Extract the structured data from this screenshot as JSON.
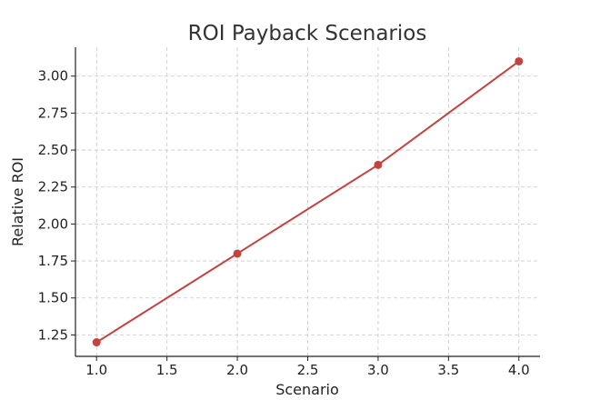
{
  "chart_data": {
    "type": "line",
    "title": "ROI Payback Scenarios",
    "xlabel": "Scenario",
    "ylabel": "Relative ROI",
    "x": [
      1.0,
      2.0,
      3.0,
      4.0
    ],
    "series": [
      {
        "values": [
          1.2,
          1.8,
          2.4,
          3.1
        ],
        "color": "#c44240"
      }
    ],
    "xlim": [
      0.85,
      4.15
    ],
    "ylim": [
      1.105,
      3.195
    ],
    "xticks": [
      1.0,
      1.5,
      2.0,
      2.5,
      3.0,
      3.5,
      4.0
    ],
    "yticks": [
      1.25,
      1.5,
      1.75,
      2.0,
      2.25,
      2.5,
      2.75,
      3.0
    ],
    "xtick_labels": [
      "1.0",
      "1.5",
      "2.0",
      "2.5",
      "3.0",
      "3.5",
      "4.0"
    ],
    "ytick_labels": [
      "1.25",
      "1.50",
      "1.75",
      "2.00",
      "2.25",
      "2.50",
      "2.75",
      "3.00"
    ],
    "grid": true,
    "marker": "circle",
    "axis_color": "#222222",
    "grid_color": "#c8c8c8"
  }
}
